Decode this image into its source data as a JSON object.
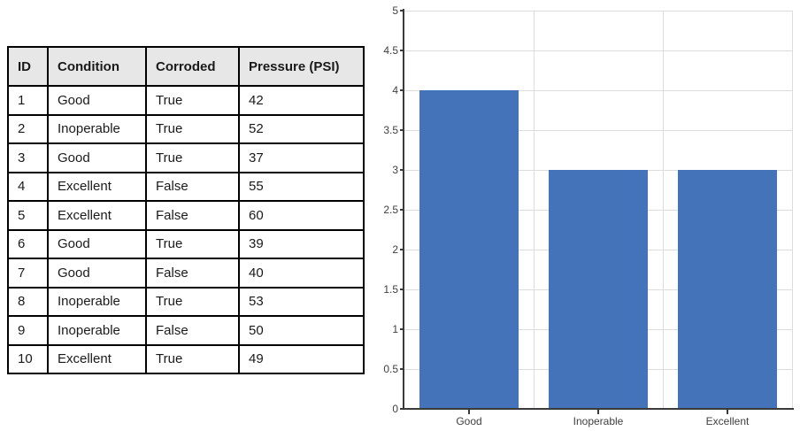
{
  "table": {
    "headers": [
      "ID",
      "Condition",
      "Corroded",
      "Pressure (PSI)"
    ],
    "rows": [
      [
        "1",
        "Good",
        "True",
        "42"
      ],
      [
        "2",
        "Inoperable",
        "True",
        "52"
      ],
      [
        "3",
        "Good",
        "True",
        "37"
      ],
      [
        "4",
        "Excellent",
        "False",
        "55"
      ],
      [
        "5",
        "Excellent",
        "False",
        "60"
      ],
      [
        "6",
        "Good",
        "True",
        "39"
      ],
      [
        "7",
        "Good",
        "False",
        "40"
      ],
      [
        "8",
        "Inoperable",
        "True",
        "53"
      ],
      [
        "9",
        "Inoperable",
        "False",
        "50"
      ],
      [
        "10",
        "Excellent",
        "True",
        "49"
      ]
    ]
  },
  "chart_data": {
    "type": "bar",
    "categories": [
      "Good",
      "Inoperable",
      "Excellent"
    ],
    "values": [
      4,
      3,
      3
    ],
    "title": "",
    "xlabel": "",
    "ylabel": "",
    "ylim": [
      0,
      5
    ],
    "ytick_step": 0.5,
    "ytick_labels": [
      "0",
      "0.5",
      "1",
      "1.5",
      "2",
      "2.5",
      "3",
      "3.5",
      "4",
      "4.5",
      "5"
    ],
    "grid": true,
    "legend": false,
    "bar_color": "#4473ba",
    "gridline_color": "#dcdcdc",
    "axis_color": "#3a3a3a",
    "tick_label_color": "#404040"
  },
  "colors": {
    "table_header_bg": "#e7e7e7",
    "table_border": "#000000",
    "background": "#ffffff"
  }
}
